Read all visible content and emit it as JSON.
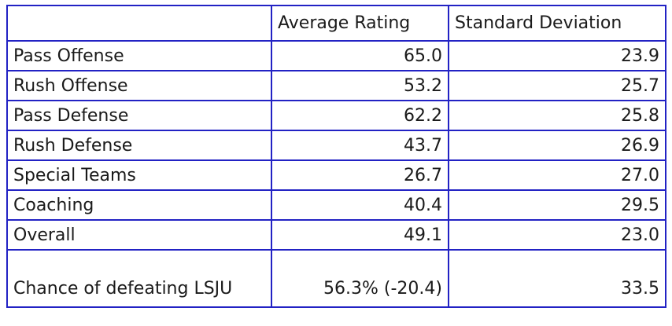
{
  "chart_data": {
    "type": "table",
    "columns": [
      "",
      "Average Rating",
      "Standard Deviation"
    ],
    "rows": [
      [
        "Pass Offense",
        65.0,
        23.9
      ],
      [
        "Rush Offense",
        53.2,
        25.7
      ],
      [
        "Pass Defense",
        62.2,
        25.8
      ],
      [
        "Rush Defense",
        43.7,
        26.9
      ],
      [
        "Special Teams",
        26.7,
        27.0
      ],
      [
        "Coaching",
        40.4,
        29.5
      ],
      [
        "Overall",
        49.1,
        23.0
      ],
      [
        "Chance of defeating LSJU",
        "56.3% (-20.4)",
        33.5
      ]
    ]
  },
  "table": {
    "headers": {
      "label": "",
      "avg": "Average Rating",
      "sd": "Standard Deviation"
    },
    "rows": [
      {
        "label": "Pass Offense",
        "avg": "65.0",
        "sd": "23.9"
      },
      {
        "label": "Rush Offense",
        "avg": "53.2",
        "sd": "25.7"
      },
      {
        "label": "Pass Defense",
        "avg": "62.2",
        "sd": "25.8"
      },
      {
        "label": "Rush Defense",
        "avg": "43.7",
        "sd": "26.9"
      },
      {
        "label": "Special Teams",
        "avg": "26.7",
        "sd": "27.0"
      },
      {
        "label": "Coaching",
        "avg": "40.4",
        "sd": "29.5"
      },
      {
        "label": "Overall",
        "avg": "49.1",
        "sd": "23.0"
      },
      {
        "label": "Chance of defeating LSJU",
        "avg": "56.3% (-20.4)",
        "sd": "33.5"
      }
    ]
  },
  "colors": {
    "border": "#2222c4",
    "text": "#1a1a1a",
    "background": "#ffffff"
  }
}
